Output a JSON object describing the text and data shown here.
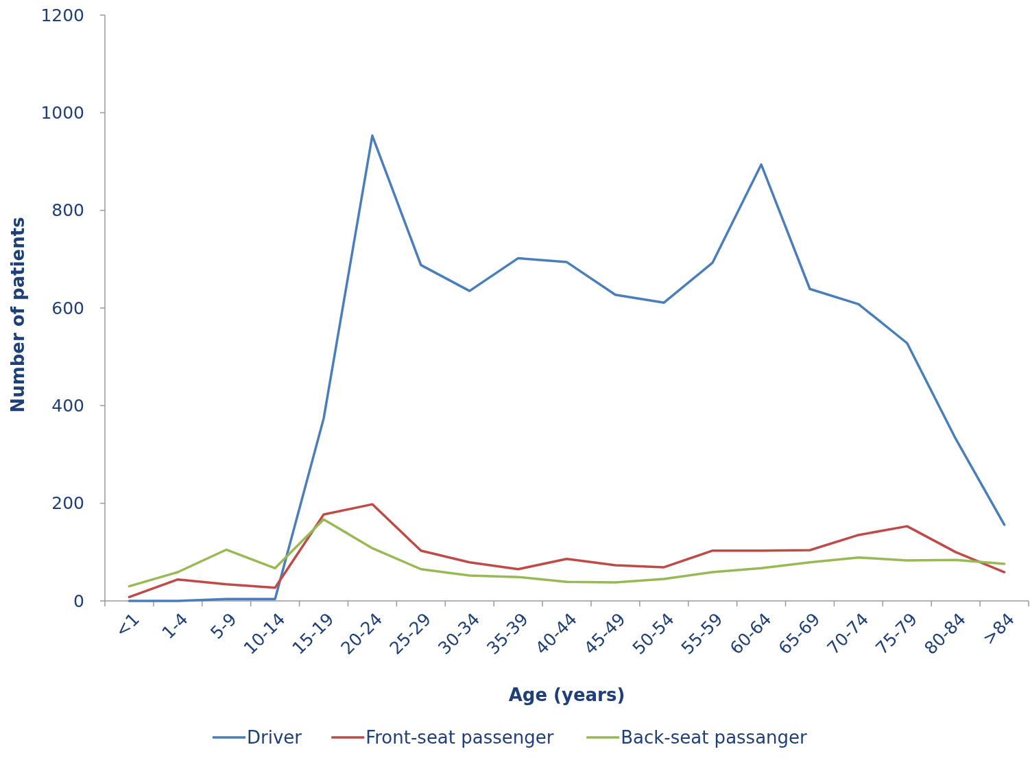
{
  "chart_data": {
    "type": "line",
    "xlabel": "Age (years)",
    "ylabel": "Number of patients",
    "categories": [
      "<1",
      "1-4",
      "5-9",
      "10-14",
      "15-19",
      "20-24",
      "25-29",
      "30-34",
      "35-39",
      "40-44",
      "45-49",
      "50-54",
      "55-59",
      "60-64",
      "65-69",
      "70-74",
      "75-79",
      "80-84",
      ">84"
    ],
    "ylim": [
      0,
      1200
    ],
    "yticks": [
      0,
      200,
      400,
      600,
      800,
      1000,
      1200
    ],
    "grid": false,
    "legend": "bottom",
    "marker": "none",
    "line_style": "solid",
    "series": [
      {
        "name": "Driver",
        "color": "#4a7ebb",
        "values": [
          0,
          0,
          4,
          4,
          374,
          953,
          688,
          635,
          702,
          694,
          627,
          611,
          693,
          894,
          639,
          608,
          528,
          332,
          156
        ]
      },
      {
        "name": "Front-seat passenger",
        "color": "#be4b48",
        "values": [
          8,
          44,
          34,
          27,
          177,
          198,
          103,
          79,
          65,
          86,
          73,
          69,
          103,
          103,
          104,
          135,
          153,
          100,
          59
        ]
      },
      {
        "name": "Back-seat passanger",
        "color": "#98b954",
        "values": [
          30,
          59,
          105,
          67,
          167,
          108,
          65,
          52,
          49,
          39,
          38,
          45,
          59,
          67,
          79,
          89,
          83,
          84,
          76
        ]
      }
    ]
  }
}
